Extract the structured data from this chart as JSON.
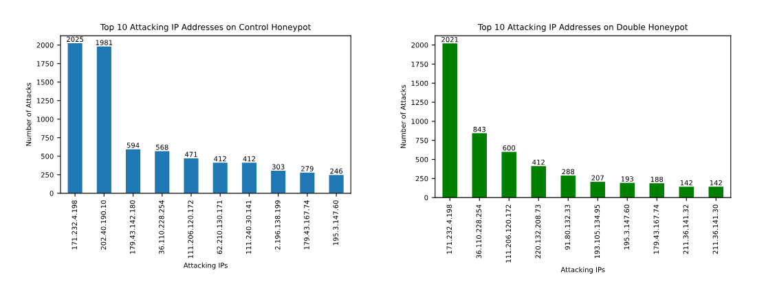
{
  "chart_data": [
    {
      "type": "bar",
      "title": "Top 10 Attacking IP Addresses on Control Honeypot",
      "xlabel": "Attacking IPs",
      "ylabel": "Number of Attacks",
      "categories": [
        "171.232.4.198",
        "202.40.190.10",
        "179.43.142.180",
        "36.110.228.254",
        "111.206.120.172",
        "62.210.130.171",
        "111.240.30.141",
        "2.196.138.199",
        "179.43.167.74",
        "195.3.147.60"
      ],
      "values": [
        2025,
        1981,
        594,
        568,
        471,
        412,
        412,
        303,
        279,
        246
      ],
      "color": "#1f77b4",
      "data_labels": true,
      "ylim": [
        0,
        2126
      ],
      "yticks": [
        0,
        250,
        500,
        750,
        1000,
        1250,
        1500,
        1750,
        2000
      ],
      "grid": false
    },
    {
      "type": "bar",
      "title": "Top 10 Attacking IP Addresses on Double Honeypot",
      "xlabel": "Attacking IPs",
      "ylabel": "Number of Attacks",
      "categories": [
        "171.232.4.198",
        "36.110.228.254",
        "111.206.120.172",
        "220.132.208.73",
        "91.80.132.33",
        "193.105.134.95",
        "195.3.147.60",
        "179.43.167.74",
        "211.36.141.32",
        "211.36.141.30"
      ],
      "values": [
        2021,
        843,
        600,
        412,
        288,
        207,
        193,
        188,
        142,
        142
      ],
      "color": "#008000",
      "data_labels": true,
      "ylim": [
        0,
        2122
      ],
      "yticks": [
        0,
        250,
        500,
        750,
        1000,
        1250,
        1500,
        1750,
        2000
      ],
      "grid": false
    }
  ]
}
